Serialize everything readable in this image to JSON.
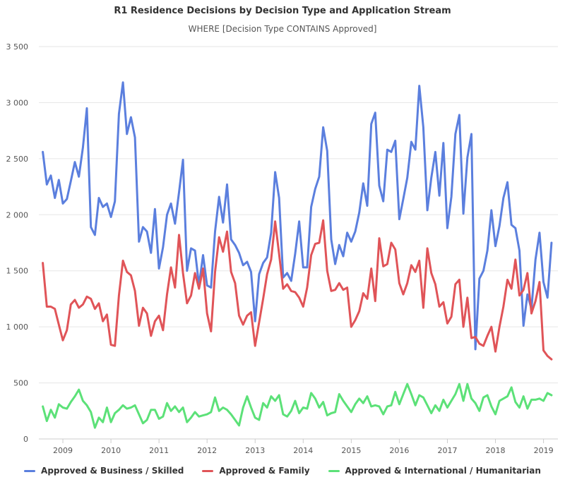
{
  "chart_data": {
    "type": "line",
    "title": "R1 Residence Decisions by Decision Type and Application Stream",
    "subtitle": "WHERE [Decision Type CONTAINS Approved]",
    "xlabel": "",
    "ylabel": "",
    "ylim": [
      0,
      3500
    ],
    "y_ticks": [
      "0",
      "500",
      "1 000",
      "1 500",
      "2 000",
      "2 500",
      "3 000",
      "3 500"
    ],
    "y_tick_values": [
      0,
      500,
      1000,
      1500,
      2000,
      2500,
      3000,
      3500
    ],
    "x_ticks": [
      "2009",
      "2010",
      "2011",
      "2012",
      "2013",
      "2014",
      "2015",
      "2016",
      "2017",
      "2018",
      "2019"
    ],
    "x_tick_values": [
      2009,
      2010,
      2011,
      2012,
      2013,
      2014,
      2015,
      2016,
      2017,
      2018,
      2019
    ],
    "x_range": [
      2008.5,
      2019.3
    ],
    "x_start": 2008.583,
    "x_step": 0.08333,
    "series": [
      {
        "name": "Approved & Business / Skilled",
        "color": "#5b7fde",
        "values": [
          2560,
          2270,
          2350,
          2150,
          2310,
          2100,
          2140,
          2300,
          2470,
          2340,
          2600,
          2950,
          1890,
          1820,
          2150,
          2070,
          2100,
          1980,
          2120,
          2900,
          3180,
          2720,
          2870,
          2690,
          1760,
          1890,
          1850,
          1660,
          2050,
          1520,
          1710,
          2000,
          2100,
          1920,
          2200,
          2490,
          1500,
          1700,
          1680,
          1370,
          1640,
          1370,
          1350,
          1850,
          2160,
          1930,
          2270,
          1780,
          1730,
          1660,
          1550,
          1580,
          1490,
          1050,
          1470,
          1570,
          1620,
          1840,
          2380,
          2150,
          1440,
          1480,
          1410,
          1650,
          1940,
          1530,
          1530,
          2070,
          2230,
          2340,
          2780,
          2570,
          1780,
          1560,
          1730,
          1630,
          1840,
          1760,
          1850,
          2020,
          2280,
          2080,
          2810,
          2910,
          2260,
          2120,
          2580,
          2560,
          2660,
          1960,
          2140,
          2330,
          2650,
          2580,
          3150,
          2780,
          2040,
          2330,
          2560,
          2170,
          2640,
          1880,
          2160,
          2720,
          2890,
          2010,
          2510,
          2720,
          800,
          1430,
          1500,
          1680,
          2040,
          1720,
          1900,
          2150,
          2290,
          1910,
          1880,
          1680,
          1010,
          1290,
          1160,
          1600,
          1840,
          1400,
          1260,
          1750
        ]
      },
      {
        "name": "Approved & Family",
        "color": "#e05458",
        "values": [
          1570,
          1180,
          1180,
          1160,
          1020,
          880,
          970,
          1200,
          1240,
          1170,
          1200,
          1270,
          1250,
          1160,
          1210,
          1050,
          1110,
          840,
          830,
          1280,
          1590,
          1490,
          1460,
          1320,
          1010,
          1170,
          1120,
          920,
          1050,
          1100,
          970,
          1290,
          1530,
          1350,
          1820,
          1480,
          1210,
          1280,
          1480,
          1340,
          1520,
          1120,
          960,
          1490,
          1800,
          1670,
          1850,
          1490,
          1390,
          1100,
          1020,
          1100,
          1130,
          830,
          1040,
          1250,
          1470,
          1600,
          1940,
          1650,
          1340,
          1380,
          1320,
          1310,
          1260,
          1180,
          1350,
          1640,
          1740,
          1750,
          1950,
          1500,
          1320,
          1330,
          1390,
          1330,
          1350,
          1000,
          1060,
          1140,
          1300,
          1250,
          1520,
          1230,
          1790,
          1540,
          1560,
          1750,
          1690,
          1390,
          1290,
          1390,
          1550,
          1490,
          1590,
          1170,
          1700,
          1480,
          1380,
          1180,
          1220,
          1030,
          1090,
          1380,
          1420,
          1000,
          1260,
          900,
          910,
          850,
          830,
          920,
          1000,
          780,
          1000,
          1180,
          1420,
          1340,
          1600,
          1280,
          1330,
          1480,
          1120,
          1230,
          1400,
          790,
          740,
          710
        ]
      },
      {
        "name": "Approved & International / Humanitarian",
        "color": "#5ce178",
        "values": [
          290,
          160,
          260,
          190,
          310,
          280,
          270,
          330,
          380,
          440,
          340,
          300,
          240,
          100,
          190,
          150,
          280,
          150,
          230,
          260,
          300,
          270,
          280,
          300,
          220,
          140,
          170,
          260,
          260,
          180,
          200,
          320,
          250,
          290,
          240,
          280,
          150,
          190,
          240,
          200,
          210,
          220,
          240,
          370,
          250,
          280,
          260,
          220,
          170,
          120,
          280,
          380,
          280,
          190,
          170,
          320,
          280,
          380,
          340,
          390,
          220,
          200,
          250,
          340,
          230,
          280,
          270,
          410,
          360,
          280,
          330,
          210,
          230,
          240,
          400,
          340,
          290,
          240,
          310,
          360,
          320,
          380,
          290,
          300,
          290,
          220,
          290,
          300,
          420,
          310,
          400,
          490,
          400,
          300,
          390,
          370,
          300,
          230,
          300,
          250,
          350,
          280,
          340,
          400,
          490,
          340,
          490,
          360,
          320,
          250,
          370,
          390,
          290,
          220,
          340,
          360,
          380,
          460,
          330,
          280,
          380,
          270,
          350,
          350,
          360,
          340,
          410,
          390
        ]
      }
    ]
  }
}
